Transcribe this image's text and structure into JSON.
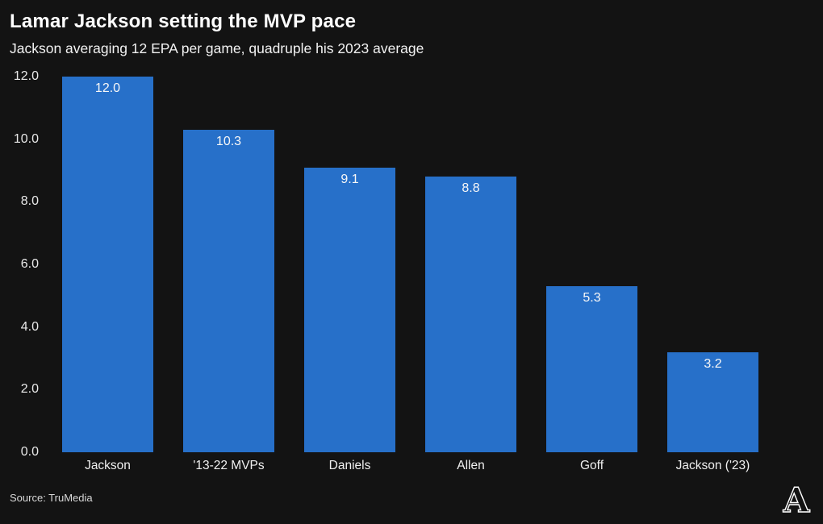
{
  "header": {
    "title": "Lamar Jackson setting the MVP pace",
    "subtitle": "Jackson averaging 12 EPA per game, quadruple his 2023 average"
  },
  "footer": {
    "source_label": "Source: TruMedia",
    "logo_letter": "A"
  },
  "colors": {
    "background": "#131313",
    "bar": "#2770C9",
    "title_text": "#ffffff",
    "subtitle_text": "#f2f2f2",
    "axis_text": "#e9e9e9",
    "value_label_text": "#f7f7f7",
    "source_text": "#d8d8d8"
  },
  "chart_data": {
    "type": "bar",
    "title": "Lamar Jackson setting the MVP pace",
    "subtitle": "Jackson averaging 12 EPA per game, quadruple his 2023 average",
    "categories": [
      "Jackson",
      "'13-22 MVPs",
      "Daniels",
      "Allen",
      "Goff",
      "Jackson ('23)"
    ],
    "values": [
      12.0,
      10.3,
      9.1,
      8.8,
      5.3,
      3.2
    ],
    "value_labels": [
      "12.0",
      "10.3",
      "9.1",
      "8.8",
      "5.3",
      "3.2"
    ],
    "xlabel": "",
    "ylabel": "",
    "ylim": [
      0,
      12
    ],
    "yticks": [
      0,
      2,
      4,
      6,
      8,
      10,
      12
    ],
    "ytick_labels": [
      "0.0",
      "2.0",
      "4.0",
      "6.0",
      "8.0",
      "10.0",
      "12.0"
    ],
    "grid": false,
    "legend": null,
    "bar_color": "#2770C9",
    "source": "TruMedia"
  }
}
